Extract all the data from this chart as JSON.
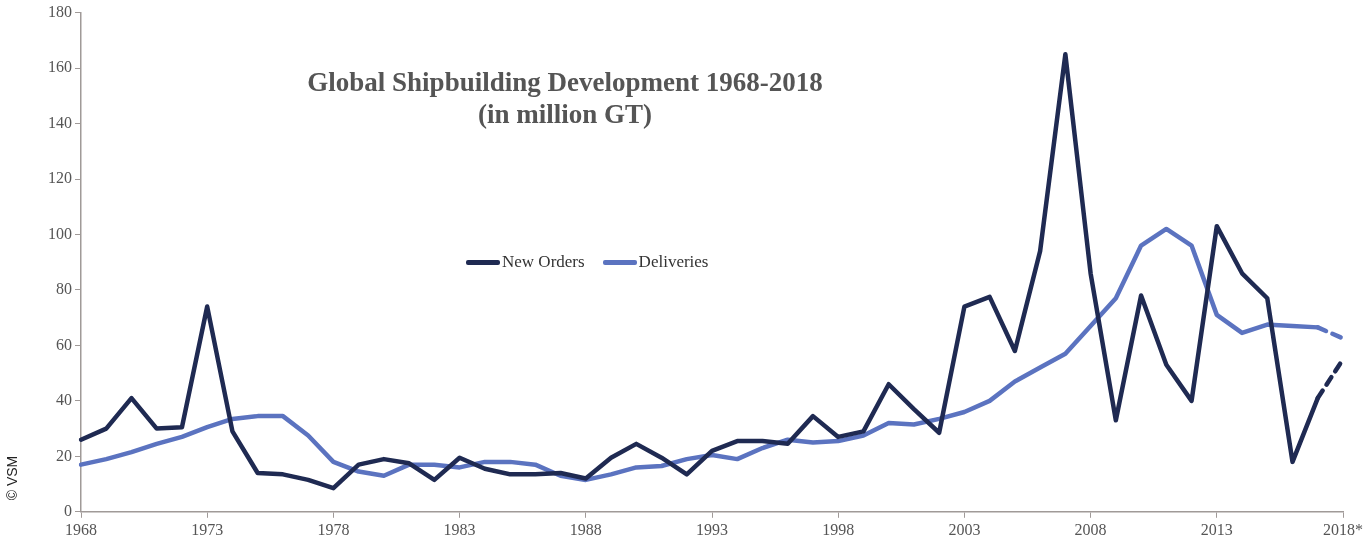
{
  "chart_data": {
    "type": "line",
    "title": "Global Shipbuilding Development 1968-2018",
    "subtitle": "(in million GT)",
    "categories": [
      "1968",
      null,
      null,
      null,
      null,
      "1973",
      null,
      null,
      null,
      null,
      "1978",
      null,
      null,
      null,
      null,
      "1983",
      null,
      null,
      null,
      null,
      "1988",
      null,
      null,
      null,
      null,
      "1993",
      null,
      null,
      null,
      null,
      "1998",
      null,
      null,
      null,
      null,
      "2003",
      null,
      null,
      null,
      null,
      "2008",
      null,
      null,
      null,
      null,
      "2013",
      null,
      null,
      null,
      null,
      "2018*"
    ],
    "series": [
      {
        "name": "New Orders",
        "color": "#1f2a52",
        "values": [
          26,
          30,
          41,
          30,
          30.5,
          74,
          29,
          14,
          13.5,
          11.5,
          8.5,
          17,
          19,
          17.5,
          11.5,
          19.5,
          15.5,
          13.5,
          13.5,
          14,
          12,
          19.5,
          24.5,
          19.5,
          13.5,
          22,
          25.5,
          25.5,
          24.5,
          34.5,
          27,
          29,
          46,
          37,
          28.5,
          74,
          77.5,
          58,
          94,
          165,
          86,
          33,
          78,
          53,
          40,
          103,
          86,
          77,
          18,
          41,
          null
        ]
      },
      {
        "name": "Deliveries",
        "color": "#5b73c0",
        "values": [
          17,
          19,
          21.5,
          24.5,
          27,
          30.5,
          33.5,
          34.5,
          34.5,
          27.5,
          18,
          14.5,
          13,
          17,
          17,
          16,
          18,
          18,
          17,
          13,
          11.5,
          13.5,
          16,
          16.5,
          19,
          20.5,
          19,
          23,
          26,
          25,
          25.5,
          27.5,
          32,
          31.5,
          33.5,
          36,
          40,
          47,
          52,
          57,
          67,
          77,
          96,
          102,
          96,
          71,
          64.5,
          67.5,
          67,
          66.5,
          null
        ]
      },
      {
        "color": "#1f2a52",
        "line_style": "dashed",
        "values": [
          null,
          null,
          null,
          null,
          null,
          null,
          null,
          null,
          null,
          null,
          null,
          null,
          null,
          null,
          null,
          null,
          null,
          null,
          null,
          null,
          null,
          null,
          null,
          null,
          null,
          null,
          null,
          null,
          null,
          null,
          null,
          null,
          null,
          null,
          null,
          null,
          null,
          null,
          null,
          null,
          null,
          null,
          null,
          null,
          null,
          null,
          null,
          null,
          null,
          41,
          55
        ]
      },
      {
        "color": "#5b73c0",
        "line_style": "dashed",
        "values": [
          null,
          null,
          null,
          null,
          null,
          null,
          null,
          null,
          null,
          null,
          null,
          null,
          null,
          null,
          null,
          null,
          null,
          null,
          null,
          null,
          null,
          null,
          null,
          null,
          null,
          null,
          null,
          null,
          null,
          null,
          null,
          null,
          null,
          null,
          null,
          null,
          null,
          null,
          null,
          null,
          null,
          null,
          null,
          null,
          null,
          null,
          null,
          null,
          null,
          66.5,
          62.5
        ]
      }
    ],
    "ylim": [
      0,
      180
    ],
    "yticks": [
      0,
      20,
      40,
      60,
      80,
      100,
      120,
      140,
      160,
      180
    ],
    "grid": false,
    "legend": "center",
    "marker": "none",
    "annotations": [
      "© VSM"
    ]
  }
}
